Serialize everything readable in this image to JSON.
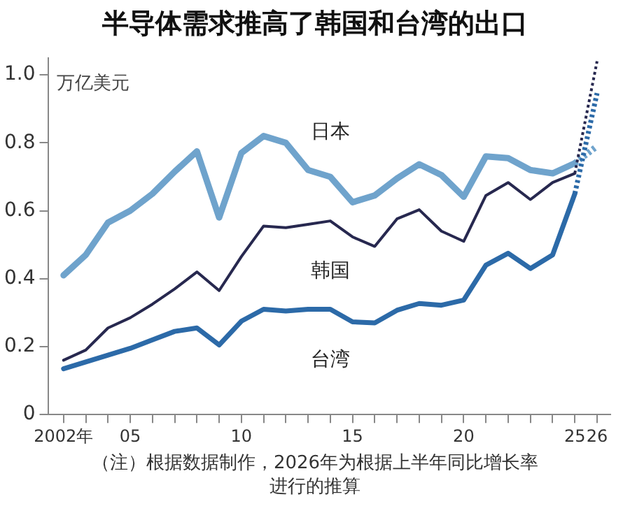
{
  "chart_data": {
    "type": "line",
    "title": "半导体需求推高了韩国和台湾的出口",
    "ylabel": "万亿美元",
    "annotations": [
      "（注）根据数据制作，2026年为根据上半年同比增长率进行的推算"
    ],
    "x": [
      2002,
      2003,
      2004,
      2005,
      2006,
      2007,
      2008,
      2009,
      2010,
      2011,
      2012,
      2013,
      2014,
      2015,
      2016,
      2017,
      2018,
      2019,
      2020,
      2021,
      2022,
      2023,
      2024,
      2025,
      2026
    ],
    "series": [
      {
        "name": "日本",
        "color": "#6fa3cc",
        "values": [
          0.41,
          0.47,
          0.565,
          0.6,
          0.65,
          0.715,
          0.775,
          0.58,
          0.77,
          0.82,
          0.8,
          0.72,
          0.7,
          0.625,
          0.645,
          0.695,
          0.737,
          0.705,
          0.641,
          0.76,
          0.755,
          0.72,
          0.71,
          0.74,
          null
        ]
      },
      {
        "name": "韩国",
        "color": "#27284f",
        "values": [
          0.16,
          0.19,
          0.255,
          0.285,
          0.325,
          0.37,
          0.42,
          0.365,
          0.465,
          0.555,
          0.55,
          0.56,
          0.57,
          0.523,
          0.495,
          0.576,
          0.603,
          0.54,
          0.51,
          0.645,
          0.683,
          0.633,
          0.683,
          0.71,
          null
        ]
      },
      {
        "name": "台湾",
        "color": "#2c6aa8",
        "values": [
          0.135,
          0.155,
          0.175,
          0.195,
          0.22,
          0.245,
          0.255,
          0.205,
          0.275,
          0.31,
          0.305,
          0.31,
          0.31,
          0.273,
          0.27,
          0.307,
          0.327,
          0.322,
          0.337,
          0.44,
          0.475,
          0.43,
          0.47,
          0.65,
          null
        ]
      },
      {
        "color": "#6fa3cc",
        "values": [
          null,
          null,
          null,
          null,
          null,
          null,
          null,
          null,
          null,
          null,
          null,
          null,
          null,
          null,
          null,
          null,
          null,
          null,
          null,
          null,
          null,
          null,
          null,
          0.74,
          0.79
        ],
        "line_style": "dotted"
      },
      {
        "color": "#27284f",
        "values": [
          null,
          null,
          null,
          null,
          null,
          null,
          null,
          null,
          null,
          null,
          null,
          null,
          null,
          null,
          null,
          null,
          null,
          null,
          null,
          null,
          null,
          null,
          null,
          0.71,
          1.04
        ],
        "line_style": "dotted"
      },
      {
        "color": "#2c6aa8",
        "values": [
          null,
          null,
          null,
          null,
          null,
          null,
          null,
          null,
          null,
          null,
          null,
          null,
          null,
          null,
          null,
          null,
          null,
          null,
          null,
          null,
          null,
          null,
          null,
          0.65,
          0.946
        ],
        "line_style": "dotted"
      }
    ],
    "xlim": [
      2001.3,
      2026.6
    ],
    "xticks": [
      {
        "value": 2002,
        "label": "2002年"
      },
      {
        "value": 2003,
        "label": null
      },
      {
        "value": 2004,
        "label": null
      },
      {
        "value": 2005,
        "label": "05"
      },
      {
        "value": 2006,
        "label": null
      },
      {
        "value": 2007,
        "label": null
      },
      {
        "value": 2008,
        "label": null
      },
      {
        "value": 2009,
        "label": null
      },
      {
        "value": 2010,
        "label": "10"
      },
      {
        "value": 2011,
        "label": null
      },
      {
        "value": 2012,
        "label": null
      },
      {
        "value": 2013,
        "label": null
      },
      {
        "value": 2014,
        "label": null
      },
      {
        "value": 2015,
        "label": "15"
      },
      {
        "value": 2016,
        "label": null
      },
      {
        "value": 2017,
        "label": null
      },
      {
        "value": 2018,
        "label": null
      },
      {
        "value": 2019,
        "label": null
      },
      {
        "value": 2020,
        "label": "20"
      },
      {
        "value": 2021,
        "label": null
      },
      {
        "value": 2022,
        "label": null
      },
      {
        "value": 2023,
        "label": null
      },
      {
        "value": 2024,
        "label": null
      },
      {
        "value": 2025,
        "label": "25"
      },
      {
        "value": 2026,
        "label": "26"
      }
    ],
    "ylim": [
      0,
      1.05
    ],
    "yticks": [
      0,
      0.2,
      0.4,
      0.6,
      0.8,
      {
        "value": 1,
        "label": "1.0"
      }
    ],
    "grid": false,
    "legend": false,
    "marker": "none",
    "line_style": "solid"
  }
}
